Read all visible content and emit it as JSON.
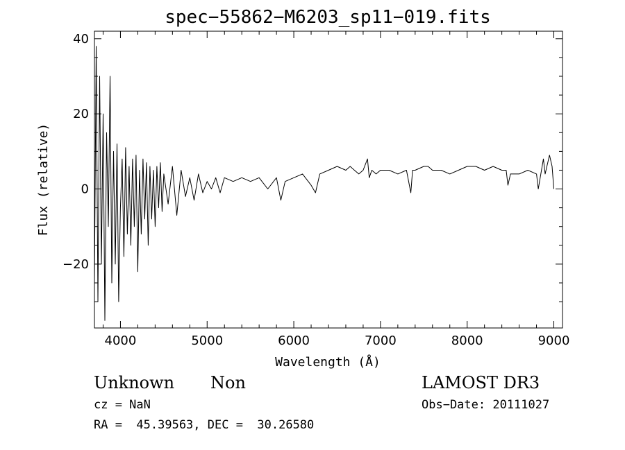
{
  "chart_data": {
    "type": "line",
    "title": "spec−55862−M6203_sp11−019.fits",
    "xlabel": "Wavelength (Å)",
    "ylabel": "Flux (relative)",
    "xlim": [
      3700,
      9100
    ],
    "ylim": [
      -37,
      42
    ],
    "xticks": [
      4000,
      5000,
      6000,
      7000,
      8000,
      9000
    ],
    "xtick_labels": [
      "4000",
      "5000",
      "6000",
      "7000",
      "8000",
      "9000"
    ],
    "yticks": [
      -20,
      0,
      20,
      40
    ],
    "ytick_labels": [
      "−20",
      "0",
      "20",
      "40"
    ],
    "grid": false,
    "series": [
      {
        "x": [
          3700,
          3720,
          3740,
          3760,
          3780,
          3800,
          3820,
          3840,
          3860,
          3880,
          3900,
          3920,
          3940,
          3960,
          3980,
          4000,
          4020,
          4040,
          4060,
          4080,
          4100,
          4120,
          4140,
          4160,
          4180,
          4200,
          4220,
          4240,
          4260,
          4280,
          4300,
          4320,
          4340,
          4360,
          4380,
          4400,
          4420,
          4440,
          4460,
          4480,
          4500,
          4550,
          4600,
          4650,
          4700,
          4750,
          4800,
          4850,
          4900,
          4950,
          5000,
          5050,
          5100,
          5150,
          5200,
          5300,
          5400,
          5500,
          5600,
          5700,
          5800,
          5850,
          5900,
          6000,
          6100,
          6200,
          6250,
          6300,
          6400,
          6500,
          6600,
          6650,
          6700,
          6750,
          6800,
          6850,
          6870,
          6900,
          6950,
          7000,
          7100,
          7200,
          7300,
          7350,
          7370,
          7400,
          7500,
          7550,
          7600,
          7700,
          7800,
          7900,
          8000,
          8100,
          8200,
          8300,
          8400,
          8450,
          8470,
          8500,
          8600,
          8700,
          8800,
          8820,
          8850,
          8880,
          8900,
          8920,
          8950,
          8980,
          9000
        ],
        "y": [
          -25,
          38,
          -30,
          30,
          -20,
          20,
          -35,
          15,
          -10,
          30,
          -25,
          10,
          -20,
          12,
          -30,
          -5,
          8,
          -18,
          11,
          -12,
          6,
          -15,
          8,
          -10,
          9,
          -22,
          5,
          -12,
          8,
          -8,
          7,
          -15,
          6,
          -8,
          5,
          -10,
          6,
          -5,
          7,
          -6,
          4,
          -4,
          6,
          -7,
          5,
          -2,
          3,
          -3,
          4,
          -1,
          2,
          0,
          3,
          -1,
          3,
          2,
          3,
          2,
          3,
          0,
          3,
          -3,
          2,
          3,
          4,
          1,
          -1,
          4,
          5,
          6,
          5,
          6,
          5,
          4,
          5,
          8,
          3,
          5,
          4,
          5,
          5,
          4,
          5,
          -1,
          5,
          5,
          6,
          6,
          5,
          5,
          4,
          5,
          6,
          6,
          5,
          6,
          5,
          5,
          1,
          4,
          4,
          5,
          4,
          0,
          4,
          8,
          4,
          6,
          9,
          6,
          0
        ]
      }
    ]
  },
  "info": {
    "object_class": "Unknown",
    "subclass": "Non",
    "cz": "cz = NaN",
    "coords": "RA =  45.39563, DEC =  30.26580",
    "survey": "LAMOST DR3",
    "obs_date": "Obs−Date: 20111027"
  }
}
